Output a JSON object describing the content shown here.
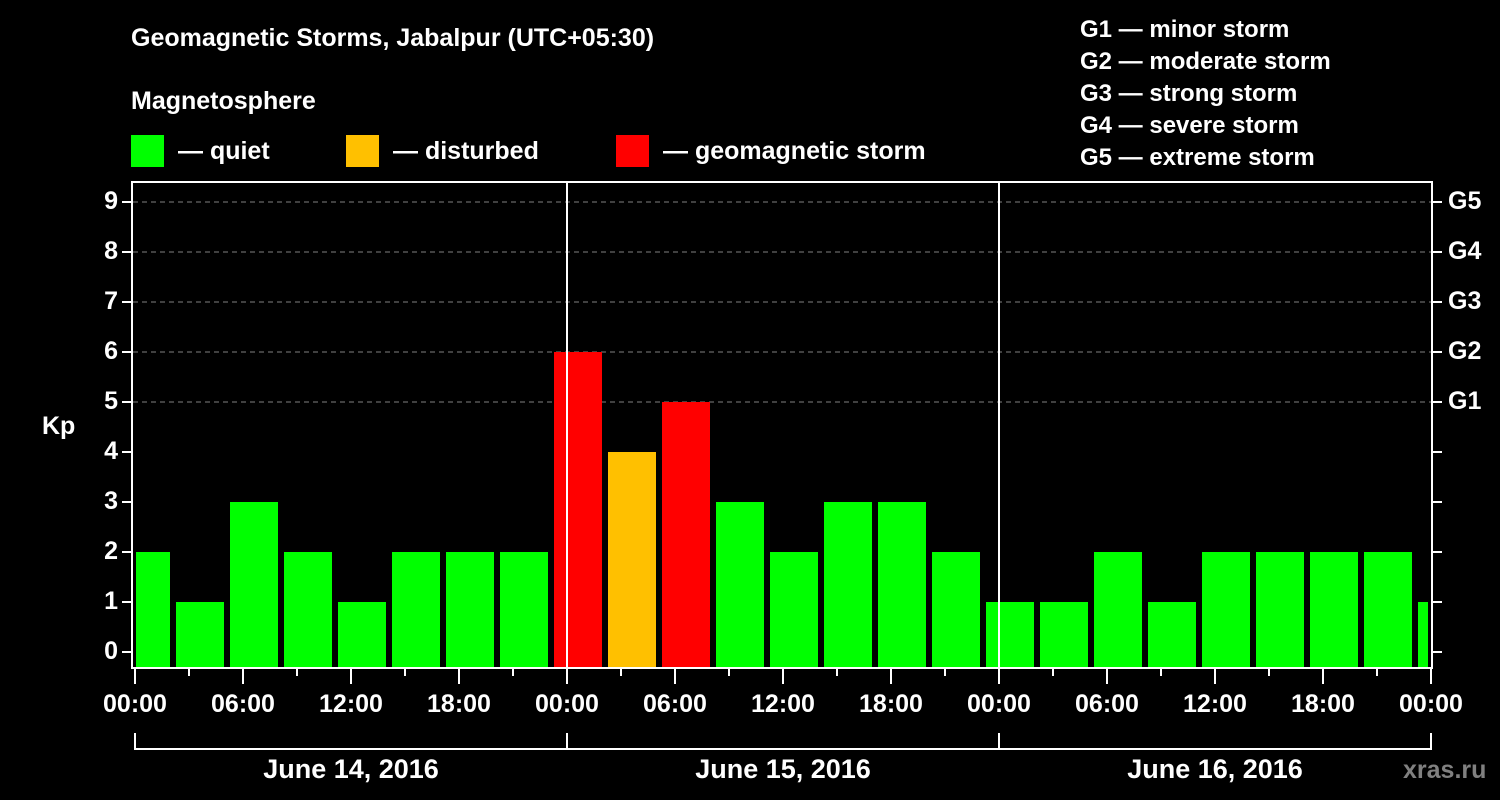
{
  "header": {
    "title": "Geomagnetic Storms, Jabalpur (UTC+05:30)",
    "subtitle": "Magnetosphere"
  },
  "legend": [
    {
      "label": "— quiet",
      "color": "#00ff00"
    },
    {
      "label": "— disturbed",
      "color": "#ffc000"
    },
    {
      "label": "— geomagnetic storm",
      "color": "#ff0000"
    }
  ],
  "g_scale_legend": [
    "G1 — minor storm",
    "G2 — moderate storm",
    "G3 — strong storm",
    "G4 — severe storm",
    "G5 — extreme storm"
  ],
  "axes": {
    "y_label": "Kp",
    "y_ticks": [
      "0",
      "1",
      "2",
      "3",
      "4",
      "5",
      "6",
      "7",
      "8",
      "9"
    ],
    "g_ticks": [
      {
        "label": "G1",
        "kp": 5
      },
      {
        "label": "G2",
        "kp": 6
      },
      {
        "label": "G3",
        "kp": 7
      },
      {
        "label": "G4",
        "kp": 8
      },
      {
        "label": "G5",
        "kp": 9
      }
    ],
    "x_ticks": [
      "00:00",
      "06:00",
      "12:00",
      "18:00",
      "00:00",
      "06:00",
      "12:00",
      "18:00",
      "00:00",
      "06:00",
      "12:00",
      "18:00",
      "00:00"
    ],
    "dates": [
      "June 14, 2016",
      "June 15, 2016",
      "June 16, 2016"
    ]
  },
  "watermark": "xras.ru",
  "colors": {
    "quiet": "#00ff00",
    "disturbed": "#ffc000",
    "storm": "#ff0000",
    "grid": "#808080",
    "axis": "#ffffff"
  },
  "chart_data": {
    "type": "bar",
    "title": "Geomagnetic Storms, Jabalpur (UTC+05:30)",
    "xlabel": "",
    "ylabel": "Kp",
    "ylim": [
      0,
      9
    ],
    "grid": "horizontal dashed at Kp 5-9",
    "interval_hours": 3,
    "note": "3-hour Kp intervals in UTC, displayed in local time UTC+05:30; first and last bars clipped by plot frame",
    "categories": [
      "Jun14 02:30*",
      "Jun14 02:30-05:30",
      "Jun14 05:30-08:30",
      "Jun14 08:30-11:30",
      "Jun14 11:30-14:30",
      "Jun14 14:30-17:30",
      "Jun14 17:30-20:30",
      "Jun14 20:30-23:30",
      "Jun14 23:30-Jun15 02:30",
      "Jun15 02:30-05:30",
      "Jun15 05:30-08:30",
      "Jun15 08:30-11:30",
      "Jun15 11:30-14:30",
      "Jun15 14:30-17:30",
      "Jun15 17:30-20:30",
      "Jun15 20:30-23:30",
      "Jun15 23:30-Jun16 02:30",
      "Jun16 02:30-05:30",
      "Jun16 05:30-08:30",
      "Jun16 08:30-11:30",
      "Jun16 11:30-14:30",
      "Jun16 14:30-17:30",
      "Jun16 17:30-20:30",
      "Jun16 20:30-23:30",
      "Jun16 23:30*"
    ],
    "values": [
      2,
      1,
      3,
      2,
      1,
      2,
      2,
      2,
      6,
      4,
      5,
      3,
      2,
      3,
      3,
      2,
      1,
      1,
      2,
      1,
      2,
      2,
      2,
      2,
      1
    ],
    "status": [
      "quiet",
      "quiet",
      "quiet",
      "quiet",
      "quiet",
      "quiet",
      "quiet",
      "quiet",
      "storm",
      "disturbed",
      "storm",
      "quiet",
      "quiet",
      "quiet",
      "quiet",
      "quiet",
      "quiet",
      "quiet",
      "quiet",
      "quiet",
      "quiet",
      "quiet",
      "quiet",
      "quiet",
      "quiet"
    ],
    "legend": [
      "quiet",
      "disturbed",
      "geomagnetic storm"
    ],
    "secondary_axis": {
      "G1": 5,
      "G2": 6,
      "G3": 7,
      "G4": 8,
      "G5": 9
    }
  }
}
